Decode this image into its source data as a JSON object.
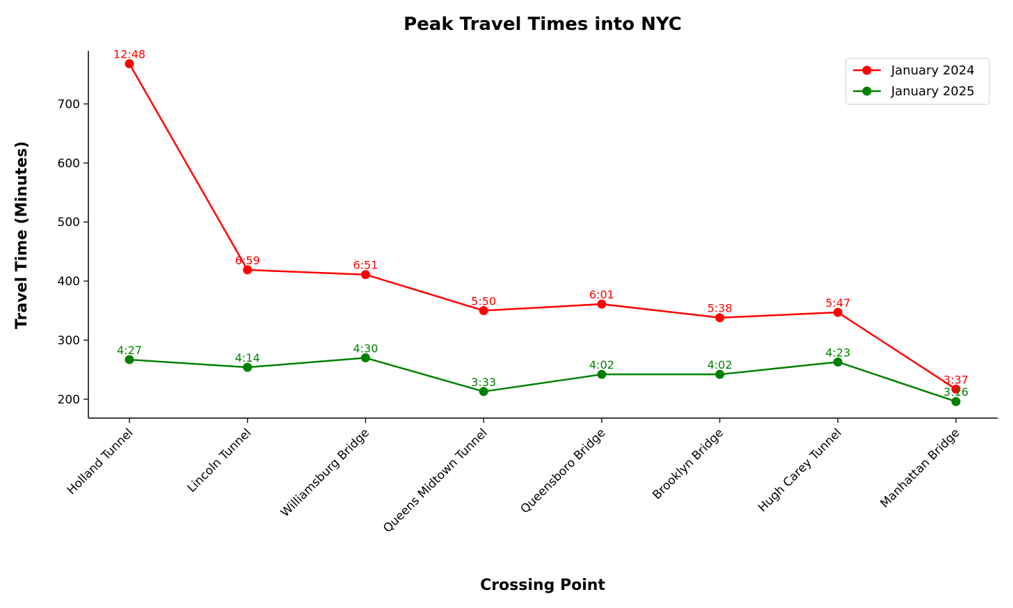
{
  "chart_data": {
    "type": "line",
    "title": "Peak Travel Times into NYC",
    "xlabel": "Crossing Point",
    "ylabel": "Travel Time (Minutes)",
    "categories": [
      "Holland Tunnel",
      "Lincoln Tunnel",
      "Williamsburg Bridge",
      "Queens Midtown Tunnel",
      "Queensboro Bridge",
      "Brooklyn Bridge",
      "Hugh Carey Tunnel",
      "Manhattan Bridge"
    ],
    "ylim": [
      168,
      790
    ],
    "yticks": [
      200,
      300,
      400,
      500,
      600,
      700
    ],
    "grid": false,
    "legend_position": "top-right",
    "series": [
      {
        "name": "January 2024",
        "color": "#ff0000",
        "values": [
          768,
          419,
          411,
          350,
          361,
          338,
          347,
          217
        ],
        "labels": [
          "12:48",
          "6:59",
          "6:51",
          "5:50",
          "6:01",
          "5:38",
          "5:47",
          "3:37"
        ]
      },
      {
        "name": "January 2025",
        "color": "#008000",
        "values": [
          267,
          254,
          270,
          213,
          242,
          242,
          263,
          196
        ],
        "labels": [
          "4:27",
          "4:14",
          "4:30",
          "3:33",
          "4:02",
          "4:02",
          "4:23",
          "3:16"
        ]
      }
    ]
  }
}
